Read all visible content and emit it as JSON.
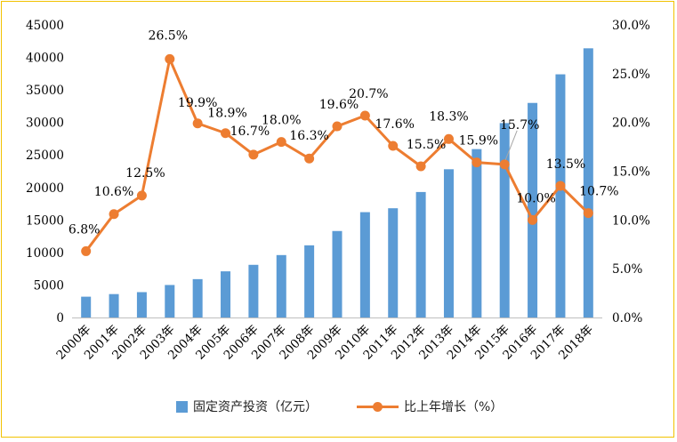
{
  "chart_data": {
    "type": "bar+line",
    "categories": [
      "2000年",
      "2001年",
      "2002年",
      "2003年",
      "2004年",
      "2005年",
      "2006年",
      "2007年",
      "2008年",
      "2009年",
      "2010年",
      "2011年",
      "2012年",
      "2013年",
      "2014年",
      "2015年",
      "2016年",
      "2017年",
      "2018年"
    ],
    "series": [
      {
        "name": "固定资产投资（亿元）",
        "type": "bar",
        "axis": "left",
        "color": "#5b9bd5",
        "values": [
          3200,
          3600,
          3900,
          5000,
          5900,
          7100,
          8100,
          9600,
          11100,
          13300,
          16200,
          16800,
          19300,
          22800,
          25900,
          29900,
          33000,
          37400,
          41400
        ]
      },
      {
        "name": "比上年增长（%）",
        "type": "line",
        "axis": "right",
        "color": "#ed7d31",
        "values": [
          6.8,
          10.6,
          12.5,
          26.5,
          19.9,
          18.9,
          16.7,
          18.0,
          16.3,
          19.6,
          20.7,
          17.6,
          15.5,
          18.3,
          15.9,
          15.7,
          10.0,
          13.5,
          10.7
        ],
        "labels": [
          "6.8%",
          "10.6%",
          "12.5%",
          "26.5%",
          "19.9%",
          "18.9%",
          "16.7%",
          "18.0%",
          "16.3%",
          "19.6%",
          "20.7%",
          "17.6%",
          "15.5%",
          "18.3%",
          "15.9%",
          "15.7%",
          "10.0%",
          "13.5%",
          "10.7%"
        ]
      }
    ],
    "y_left": {
      "min": 0,
      "max": 45000,
      "step": 5000,
      "ticks": [
        "0",
        "5000",
        "10000",
        "15000",
        "20000",
        "25000",
        "30000",
        "35000",
        "40000",
        "45000"
      ]
    },
    "y_right": {
      "min": 0,
      "max": 30,
      "step": 5,
      "ticks": [
        "0.0%",
        "5.0%",
        "10.0%",
        "15.0%",
        "20.0%",
        "25.0%",
        "30.0%"
      ]
    },
    "grid": false,
    "legend_position": "bottom"
  },
  "colors": {
    "border": "#f2c200",
    "bar": "#5b9bd5",
    "line": "#ed7d31"
  }
}
